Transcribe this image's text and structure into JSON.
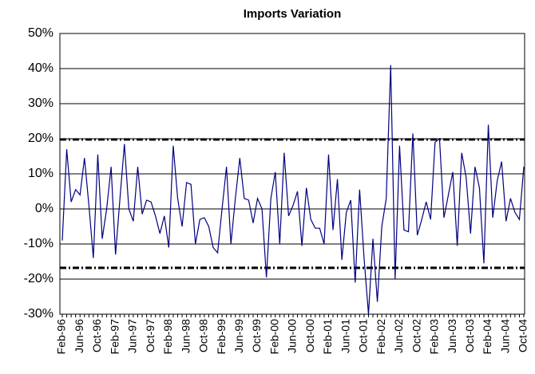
{
  "chart_data": {
    "type": "line",
    "title": "Imports Variation",
    "categories": [
      "Feb-96",
      null,
      null,
      null,
      "Jun-96",
      null,
      null,
      null,
      "Oct-96",
      null,
      null,
      null,
      "Feb-97",
      null,
      null,
      null,
      "Jun-97",
      null,
      null,
      null,
      "Oct-97",
      null,
      null,
      null,
      "Feb-98",
      null,
      null,
      null,
      "Jun-98",
      null,
      null,
      null,
      "Oct-98",
      null,
      null,
      null,
      "Feb-99",
      null,
      null,
      null,
      "Jun-99",
      null,
      null,
      null,
      "Oct-99",
      null,
      null,
      null,
      "Feb-00",
      null,
      null,
      null,
      "Jun-00",
      null,
      null,
      null,
      "Oct-00",
      null,
      null,
      null,
      "Feb-01",
      null,
      null,
      null,
      "Jun-01",
      null,
      null,
      null,
      "Oct-01",
      null,
      null,
      null,
      "Feb-02",
      null,
      null,
      null,
      "Jun-02",
      null,
      null,
      null,
      "Oct-02",
      null,
      null,
      null,
      "Feb-03",
      null,
      null,
      null,
      "Jun-03",
      null,
      null,
      null,
      "Oct-03",
      null,
      null,
      null,
      "Feb-04",
      null,
      null,
      null,
      "Jun-04",
      null,
      null,
      null,
      "Oct-04"
    ],
    "series": [
      {
        "color": "#000080",
        "values": [
          -9,
          17,
          2,
          5.5,
          4,
          14.5,
          1,
          -14,
          15.5,
          -8.5,
          0,
          12,
          -13,
          3,
          18.5,
          0,
          -3.5,
          12,
          -1.5,
          2.5,
          2,
          -2,
          -7,
          -2,
          -11,
          18,
          3,
          -5,
          7.5,
          7,
          -10,
          -3,
          -2.5,
          -5,
          -11,
          -12.5,
          0,
          12,
          -10,
          3,
          14.5,
          3,
          2.5,
          -4,
          3,
          0,
          -19.5,
          3,
          10.5,
          -10,
          16,
          -2,
          1,
          5,
          -10.5,
          6,
          -3,
          -5.5,
          -5.5,
          -10,
          15.5,
          -6,
          8.5,
          -14.5,
          -1,
          2.5,
          -21,
          5.5,
          -14,
          -30,
          -8.5,
          -26.5,
          -5,
          3,
          41,
          -20,
          18,
          -6,
          -6.5,
          21.5,
          -7.5,
          -3,
          2,
          -3,
          19,
          20,
          -2.5,
          4,
          10.5,
          -10.5,
          16,
          9,
          -7,
          12,
          6,
          -15.5,
          24,
          -2.5,
          8,
          13.5,
          -3.5,
          3,
          -1,
          -3,
          12
        ]
      }
    ],
    "reference_lines": [
      {
        "value": 19.8,
        "color": "#000000"
      },
      {
        "value": -16.8,
        "color": "#000000"
      }
    ],
    "ylim": [
      -30,
      50
    ],
    "yticks": [
      {
        "value": -30,
        "label": "-30%"
      },
      {
        "value": -20,
        "label": "-20%"
      },
      {
        "value": -10,
        "label": "-10%"
      },
      {
        "value": 0,
        "label": "0%"
      },
      {
        "value": 10,
        "label": "10%"
      },
      {
        "value": 20,
        "label": "20%"
      },
      {
        "value": 30,
        "label": "30%"
      },
      {
        "value": 40,
        "label": "40%"
      },
      {
        "value": 50,
        "label": "50%"
      }
    ],
    "grid": true
  }
}
